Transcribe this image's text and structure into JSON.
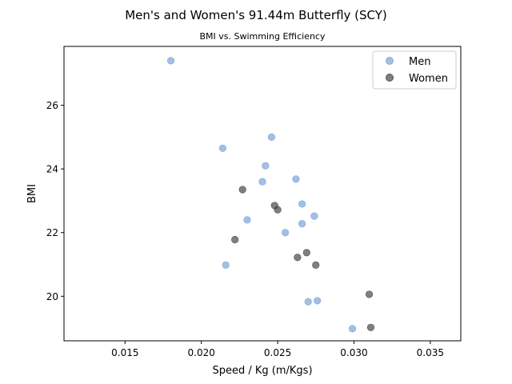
{
  "chart_data": {
    "type": "scatter",
    "title": "Men's and Women's 91.44m Butterfly (SCY)",
    "subtitle": "BMI vs. Swimming Efficiency",
    "xlabel": "Speed / Kg (m/Kgs)",
    "ylabel": "BMI",
    "xlim": [
      0.011,
      0.037
    ],
    "ylim": [
      18.6,
      27.85
    ],
    "xticks": [
      0.015,
      0.02,
      0.025,
      0.03,
      0.035
    ],
    "xtick_labels": [
      "0.015",
      "0.020",
      "0.025",
      "0.030",
      "0.035"
    ],
    "yticks": [
      20,
      22,
      24,
      26
    ],
    "ytick_labels": [
      "20",
      "22",
      "24",
      "26"
    ],
    "grid": false,
    "legend_position": "top-right",
    "series": [
      {
        "name": "Men",
        "color": "#6f9ed4",
        "points": [
          [
            0.018,
            27.4
          ],
          [
            0.0246,
            25.0
          ],
          [
            0.0214,
            24.65
          ],
          [
            0.0242,
            24.1
          ],
          [
            0.0262,
            23.68
          ],
          [
            0.024,
            23.6
          ],
          [
            0.0266,
            22.9
          ],
          [
            0.0274,
            22.52
          ],
          [
            0.023,
            22.4
          ],
          [
            0.0266,
            22.28
          ],
          [
            0.0255,
            22.0
          ],
          [
            0.0216,
            20.98
          ],
          [
            0.027,
            19.83
          ],
          [
            0.0276,
            19.86
          ],
          [
            0.0299,
            18.98
          ]
        ]
      },
      {
        "name": "Women",
        "color": "#3a3a3a",
        "points": [
          [
            0.0227,
            23.35
          ],
          [
            0.0248,
            22.85
          ],
          [
            0.025,
            22.72
          ],
          [
            0.0222,
            21.78
          ],
          [
            0.0269,
            21.37
          ],
          [
            0.0263,
            21.22
          ],
          [
            0.0275,
            20.98
          ],
          [
            0.031,
            20.06
          ],
          [
            0.0311,
            19.02
          ]
        ]
      }
    ]
  }
}
